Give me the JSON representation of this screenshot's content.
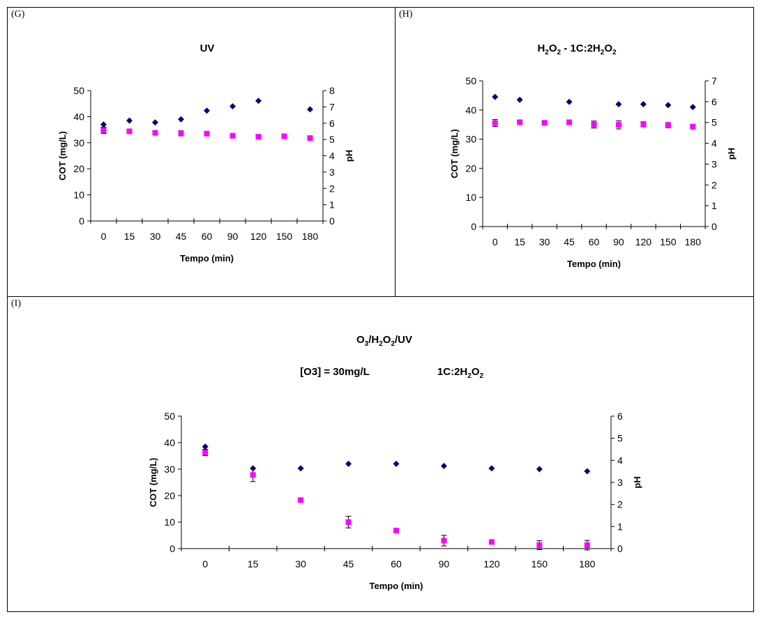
{
  "panels": [
    {
      "label": "(G)",
      "title": "UV",
      "chart_data": {
        "type": "scatter",
        "title": "UV",
        "xlabel": "Tempo (min)",
        "ylabel": "COT (mg/L)",
        "y2label": "pH",
        "categories": [
          "0",
          "15",
          "30",
          "45",
          "60",
          "90",
          "120",
          "150",
          "180"
        ],
        "ylim": [
          0,
          50
        ],
        "yticks": [
          0,
          10,
          20,
          30,
          40,
          50
        ],
        "y2lim": [
          0,
          8
        ],
        "y2ticks": [
          0,
          1,
          2,
          3,
          4,
          5,
          6,
          7,
          8
        ],
        "series": [
          {
            "axis": "left",
            "color": "#000080",
            "marker": "diamond",
            "values": [
              37.0,
              38.5,
              37.8,
              39.0,
              42.3,
              44.0,
              46.1,
              null,
              42.8
            ]
          },
          {
            "axis": "left",
            "color": "#ff00ff",
            "marker": "square",
            "values": [
              34.8,
              34.4,
              33.8,
              33.6,
              33.5,
              32.7,
              32.3,
              32.5,
              31.8
            ],
            "errors": [
              1.2,
              0.6,
              0.6,
              1.0,
              0.7,
              0.6,
              0.6,
              0.5,
              0.5
            ]
          }
        ]
      }
    },
    {
      "label": "(H)",
      "title": "H2O2 - 1C:2H2O2",
      "chart_data": {
        "type": "scatter",
        "title": "H2O2 - 1C:2H2O2",
        "xlabel": "Tempo (min)",
        "ylabel": "COT (mg/L)",
        "y2label": "pH",
        "categories": [
          "0",
          "15",
          "30",
          "45",
          "60",
          "90",
          "120",
          "150",
          "180"
        ],
        "ylim": [
          0,
          50
        ],
        "yticks": [
          0,
          10,
          20,
          30,
          40,
          50
        ],
        "y2lim": [
          0,
          7
        ],
        "y2ticks": [
          0,
          1,
          2,
          3,
          4,
          5,
          6,
          7
        ],
        "series": [
          {
            "axis": "left",
            "color": "#000080",
            "marker": "diamond",
            "values": [
              44.5,
              43.5,
              null,
              42.8,
              null,
              42.0,
              42.0,
              41.7,
              41.0
            ]
          },
          {
            "axis": "left",
            "color": "#ff00ff",
            "marker": "square",
            "values": [
              35.5,
              35.8,
              35.6,
              35.8,
              35.0,
              34.9,
              35.1,
              34.8,
              34.3
            ],
            "errors": [
              1.2,
              0.6,
              0.6,
              0.7,
              1.2,
              1.4,
              0.9,
              0.9,
              0.7
            ]
          }
        ]
      }
    },
    {
      "label": "(I)",
      "title": "O3/H2O2/UV",
      "subtitle_left": "[O3] = 30mg/L",
      "subtitle_right": "1C:2H2O2",
      "chart_data": {
        "type": "scatter",
        "title": "O3/H2O2/UV",
        "subtitle": "[O3] = 30mg/L 1C:2H2O2",
        "xlabel": "Tempo (min)",
        "ylabel": "COT (mg/L)",
        "y2label": "pH",
        "categories": [
          "0",
          "15",
          "30",
          "45",
          "60",
          "90",
          "120",
          "150",
          "180"
        ],
        "ylim": [
          0,
          50
        ],
        "yticks": [
          0,
          10,
          20,
          30,
          40,
          50
        ],
        "y2lim": [
          0,
          6
        ],
        "y2ticks": [
          0,
          1,
          2,
          3,
          4,
          5,
          6
        ],
        "series": [
          {
            "axis": "left",
            "color": "#000080",
            "marker": "diamond",
            "values": [
              38.5,
              30.3,
              30.3,
              32.0,
              32.0,
              31.2,
              30.3,
              30.0,
              29.2
            ]
          },
          {
            "axis": "left",
            "color": "#ff00ff",
            "marker": "square",
            "values": [
              36.3,
              27.8,
              18.3,
              10.0,
              6.8,
              3.0,
              2.5,
              1.3,
              1.3
            ],
            "errors": [
              1.2,
              2.5,
              0.6,
              2.2,
              0.8,
              2.0,
              0.5,
              1.7,
              1.8
            ]
          }
        ]
      }
    }
  ]
}
